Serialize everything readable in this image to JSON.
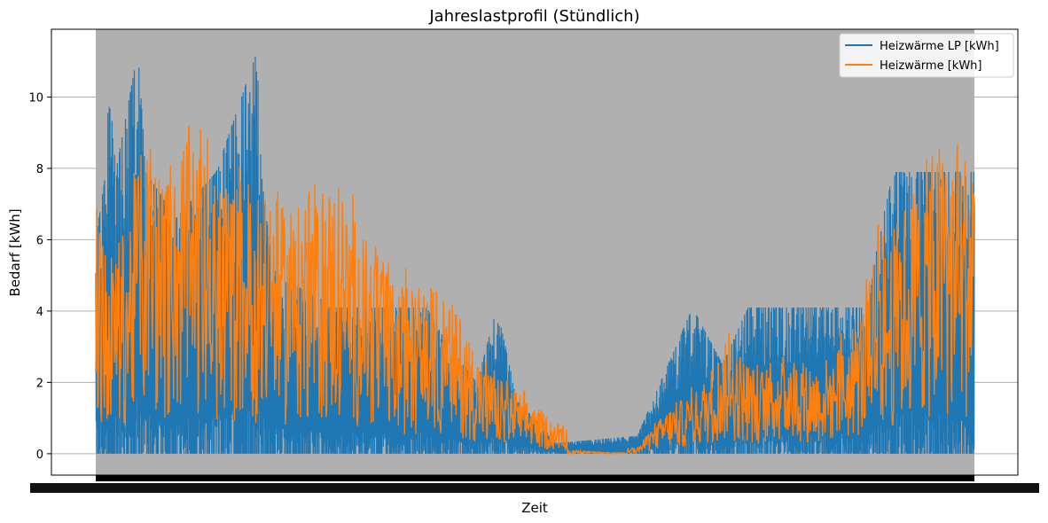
{
  "chart_data": {
    "type": "line",
    "title": "Jahreslastprofil (Stündlich)",
    "xlabel": "Zeit",
    "ylabel": "Bedarf [kWh]",
    "ylim": [
      -0.6,
      11.9
    ],
    "yticks": [
      0,
      2,
      4,
      6,
      8,
      10
    ],
    "grid": true,
    "legend_position": "top-right",
    "x_unit": "hour of year",
    "x_range": [
      0,
      8760
    ],
    "series": [
      {
        "name": "Heizwärme LP [kWh]",
        "color": "#1f77b4",
        "envelope": [
          {
            "x": 0,
            "y": 6.0
          },
          {
            "x": 100,
            "y": 7.9
          },
          {
            "x": 120,
            "y": 11.3
          },
          {
            "x": 200,
            "y": 7.9
          },
          {
            "x": 420,
            "y": 11.3
          },
          {
            "x": 500,
            "y": 7.9
          },
          {
            "x": 800,
            "y": 6.6
          },
          {
            "x": 1200,
            "y": 7.9
          },
          {
            "x": 1650,
            "y": 7.9
          },
          {
            "x": 1610,
            "y": 11.3
          },
          {
            "x": 1700,
            "y": 6.6
          },
          {
            "x": 1800,
            "y": 5.0
          },
          {
            "x": 2400,
            "y": 4.1
          },
          {
            "x": 3300,
            "y": 4.1
          },
          {
            "x": 3500,
            "y": 3.1
          },
          {
            "x": 3800,
            "y": 2.0
          },
          {
            "x": 4000,
            "y": 4.1
          },
          {
            "x": 4200,
            "y": 1.5
          },
          {
            "x": 4600,
            "y": 0.3
          },
          {
            "x": 5400,
            "y": 0.5
          },
          {
            "x": 5950,
            "y": 4.1
          },
          {
            "x": 6250,
            "y": 2.5
          },
          {
            "x": 6500,
            "y": 4.1
          },
          {
            "x": 7700,
            "y": 4.1
          },
          {
            "x": 7800,
            "y": 6.0
          },
          {
            "x": 7950,
            "y": 7.9
          },
          {
            "x": 8760,
            "y": 7.9
          }
        ],
        "min": 0
      },
      {
        "name": "Heizwärme [kWh]",
        "color": "#ff7f0e",
        "values": [
          {
            "x": 0,
            "y": 4.0
          },
          {
            "x": 100,
            "y": 3.0
          },
          {
            "x": 300,
            "y": 3.6
          },
          {
            "x": 500,
            "y": 5.5
          },
          {
            "x": 700,
            "y": 4.2
          },
          {
            "x": 900,
            "y": 5.2
          },
          {
            "x": 1200,
            "y": 4.2
          },
          {
            "x": 1500,
            "y": 4.4
          },
          {
            "x": 1800,
            "y": 3.8
          },
          {
            "x": 2100,
            "y": 4.2
          },
          {
            "x": 2400,
            "y": 4.3
          },
          {
            "x": 2700,
            "y": 3.5
          },
          {
            "x": 3000,
            "y": 2.6
          },
          {
            "x": 3300,
            "y": 2.7
          },
          {
            "x": 3600,
            "y": 2.3
          },
          {
            "x": 3900,
            "y": 1.3
          },
          {
            "x": 4200,
            "y": 1.0
          },
          {
            "x": 4500,
            "y": 0.6
          },
          {
            "x": 4800,
            "y": 0.3
          },
          {
            "x": 5100,
            "y": 0.1
          },
          {
            "x": 5400,
            "y": 0.1
          },
          {
            "x": 5700,
            "y": 0.7
          },
          {
            "x": 6000,
            "y": 1.0
          },
          {
            "x": 6300,
            "y": 1.8
          },
          {
            "x": 6600,
            "y": 1.3
          },
          {
            "x": 6900,
            "y": 1.6
          },
          {
            "x": 7200,
            "y": 1.4
          },
          {
            "x": 7500,
            "y": 1.8
          },
          {
            "x": 7800,
            "y": 2.9
          },
          {
            "x": 8100,
            "y": 4.1
          },
          {
            "x": 8400,
            "y": 4.9
          },
          {
            "x": 8760,
            "y": 4.8
          }
        ],
        "peaks": [
          {
            "x": 710,
            "y": 7.5
          },
          {
            "x": 1800,
            "y": 7.1
          },
          {
            "x": 2020,
            "y": 6.9
          },
          {
            "x": 2500,
            "y": 6.4
          },
          {
            "x": 8740,
            "y": 7.6
          },
          {
            "x": 8480,
            "y": 6.8
          },
          {
            "x": 7800,
            "y": 6.4
          }
        ]
      }
    ]
  }
}
